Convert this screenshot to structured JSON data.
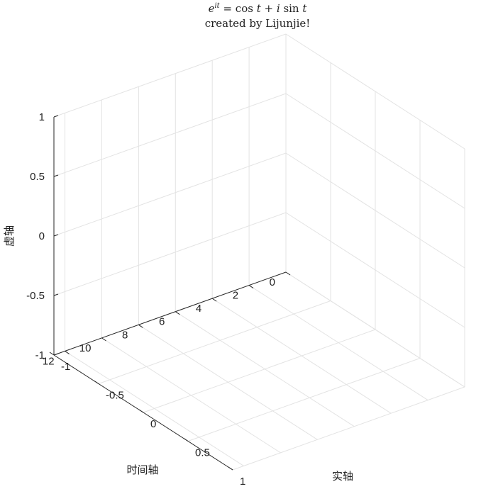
{
  "chart_data": {
    "type": "line",
    "title_formula_parts": [
      "e",
      "it",
      " = cos ",
      "t",
      " + ",
      "i",
      " sin ",
      "t"
    ],
    "subtitle": "created by Lijunjie!",
    "xlabel": "实轴",
    "ylabel": "虚轴",
    "zlabel": "时间轴",
    "x_ticks": [
      "-1",
      "-0.5",
      "0",
      "0.5",
      "1"
    ],
    "y_ticks": [
      "-1",
      "-0.5",
      "0",
      "0.5",
      "1"
    ],
    "z_ticks": [
      "0",
      "2",
      "4",
      "6",
      "8",
      "10",
      "12"
    ],
    "xlim": [
      -1,
      1
    ],
    "ylim": [
      -1,
      1
    ],
    "zlim": [
      0,
      12.6
    ],
    "grid": true,
    "view": "3d",
    "series": []
  }
}
